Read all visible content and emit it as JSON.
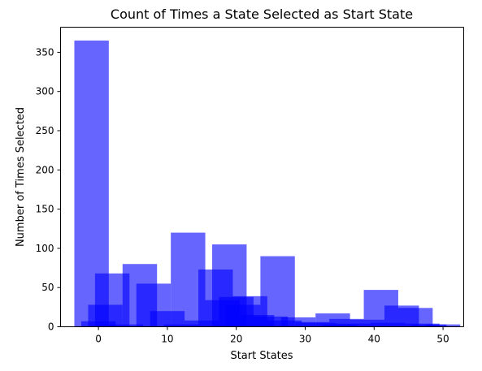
{
  "chart_data": {
    "type": "bar",
    "title": "Count of Times a State Selected as Start State",
    "xlabel": "Start States",
    "ylabel": "Number of Times Selected",
    "xlim": [
      -5.5,
      53
    ],
    "ylim": [
      0,
      382
    ],
    "xticks": [
      0,
      10,
      20,
      30,
      40,
      50
    ],
    "yticks": [
      0,
      50,
      100,
      150,
      200,
      250,
      300,
      350
    ],
    "grid": false,
    "bar_color": "#0000ff",
    "bar_alpha": 0.6,
    "bars": [
      {
        "x0": -3.5,
        "x1": 1.5,
        "value": 365
      },
      {
        "x0": 3.5,
        "x1": 8.5,
        "value": 80
      },
      {
        "x0": 10.5,
        "x1": 15.5,
        "value": 120
      },
      {
        "x0": 16.5,
        "x1": 21.5,
        "value": 105
      },
      {
        "x0": 23.5,
        "x1": 28.5,
        "value": 90
      },
      {
        "x0": 31.5,
        "x1": 36.5,
        "value": 17
      },
      {
        "x0": 38.5,
        "x1": 43.5,
        "value": 47
      },
      {
        "x0": 45.5,
        "x1": 50.5,
        "value": 3
      },
      {
        "x0": -0.5,
        "x1": 4.5,
        "value": 68
      },
      {
        "x0": 5.5,
        "x1": 10.5,
        "value": 55
      },
      {
        "x0": 14.5,
        "x1": 19.5,
        "value": 73
      },
      {
        "x0": 19.5,
        "x1": 24.5,
        "value": 39
      },
      {
        "x0": 41.5,
        "x1": 46.5,
        "value": 27
      },
      {
        "x0": 43.5,
        "x1": 48.5,
        "value": 24
      },
      {
        "x0": -1.5,
        "x1": 3.5,
        "value": 28
      },
      {
        "x0": 7.5,
        "x1": 12.5,
        "value": 20
      },
      {
        "x0": 17.5,
        "x1": 22.5,
        "value": 38
      },
      {
        "x0": 15.5,
        "x1": 20.5,
        "value": 34
      },
      {
        "x0": 22.5,
        "x1": 27.5,
        "value": 13
      },
      {
        "x0": 26.5,
        "x1": 31.5,
        "value": 12
      },
      {
        "x0": 33.5,
        "x1": 38.5,
        "value": 10
      },
      {
        "x0": 36.5,
        "x1": 41.5,
        "value": 9
      },
      {
        "x0": 24.5,
        "x1": 29.5,
        "value": 8
      },
      {
        "x0": 29.5,
        "x1": 34.5,
        "value": 5
      },
      {
        "x0": 34.5,
        "x1": 39.5,
        "value": 4
      },
      {
        "x0": 12.5,
        "x1": 17.5,
        "value": 8
      },
      {
        "x0": -2.5,
        "x1": 2.5,
        "value": 7
      },
      {
        "x0": 1.5,
        "x1": 6.5,
        "value": 3
      },
      {
        "x0": 9.5,
        "x1": 14.5,
        "value": 3
      },
      {
        "x0": 39.5,
        "x1": 44.5,
        "value": 5
      },
      {
        "x0": 44.5,
        "x1": 49.5,
        "value": 4
      },
      {
        "x0": 47.5,
        "x1": 52.5,
        "value": 3
      },
      {
        "x0": 18.5,
        "x1": 23.5,
        "value": 28
      },
      {
        "x0": 20.5,
        "x1": 25.5,
        "value": 15
      },
      {
        "x0": 28.5,
        "x1": 33.5,
        "value": 6
      },
      {
        "x0": 32.5,
        "x1": 37.5,
        "value": 3
      }
    ]
  }
}
